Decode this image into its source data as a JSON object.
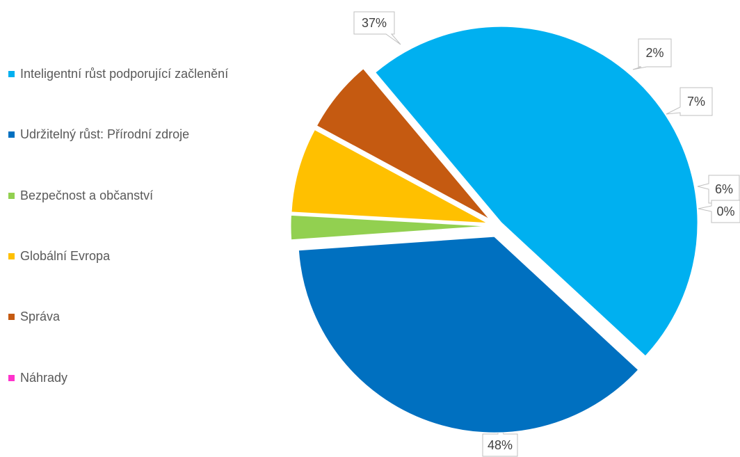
{
  "chart_data": {
    "type": "pie",
    "title": "",
    "legend_position": "left",
    "series": [
      {
        "name": "",
        "values": [
          {
            "label": "Inteligentní růst podporující začlenění",
            "value": 48,
            "display": "48%",
            "color": "#00B0F0"
          },
          {
            "label": "Udržitelný růst: Přírodní zdroje",
            "value": 37,
            "display": "37%",
            "color": "#0070C0"
          },
          {
            "label": "Bezpečnost a občanství",
            "value": 2,
            "display": "2%",
            "color": "#92D050"
          },
          {
            "label": "Globální Evropa",
            "value": 7,
            "display": "7%",
            "color": "#FFC000"
          },
          {
            "label": "Správa",
            "value": 6,
            "display": "6%",
            "color": "#C55A11"
          },
          {
            "label": "Náhrady",
            "value": 0,
            "display": "0%",
            "color": "#FF33CC"
          }
        ]
      }
    ]
  }
}
